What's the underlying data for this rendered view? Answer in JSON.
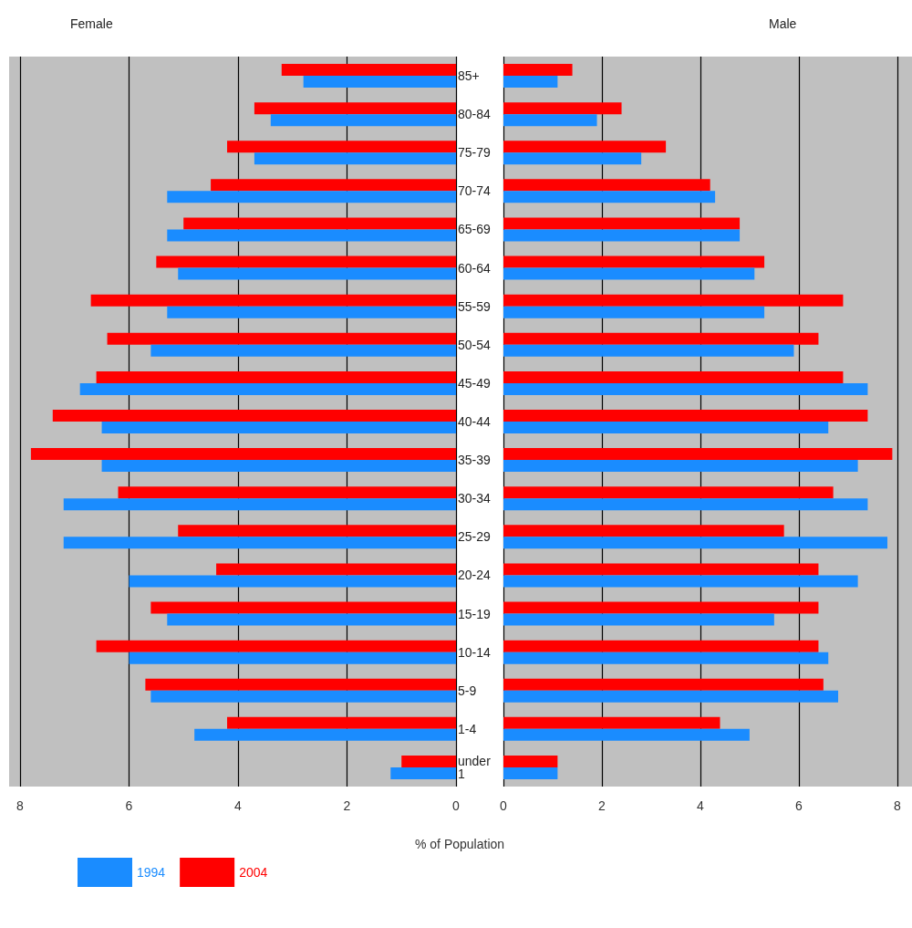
{
  "chart_data": [
    {
      "type": "bar",
      "orientation": "horizontal",
      "title": "Female",
      "xlabel": "% of Population",
      "categories": [
        "85+",
        "80-84",
        "75-79",
        "70-74",
        "65-69",
        "60-64",
        "55-59",
        "50-54",
        "45-49",
        "40-44",
        "35-39",
        "30-34",
        "25-29",
        "20-24",
        "15-19",
        "10-14",
        "5-9",
        "1-4",
        "under 1"
      ],
      "series": [
        {
          "name": "1994",
          "color": "#1a8cff",
          "values": [
            2.8,
            3.4,
            3.7,
            5.3,
            5.3,
            5.1,
            5.3,
            5.6,
            6.9,
            6.5,
            6.5,
            7.2,
            7.2,
            6.0,
            5.3,
            6.0,
            5.6,
            4.8,
            1.2
          ]
        },
        {
          "name": "2004",
          "color": "#ff0000",
          "values": [
            3.2,
            3.7,
            4.2,
            4.5,
            5.0,
            5.5,
            6.7,
            6.4,
            6.6,
            7.4,
            7.8,
            6.2,
            5.1,
            4.4,
            5.6,
            6.6,
            5.7,
            4.2,
            1.0
          ]
        }
      ],
      "xlim": [
        8.2,
        0
      ],
      "xticks": [
        8,
        6,
        4,
        2,
        0
      ],
      "grid": "x",
      "legend": "bottom left"
    },
    {
      "type": "bar",
      "orientation": "horizontal",
      "title": "Male",
      "categories": [
        "85+",
        "80-84",
        "75-79",
        "70-74",
        "65-69",
        "60-64",
        "55-59",
        "50-54",
        "45-49",
        "40-44",
        "35-39",
        "30-34",
        "25-29",
        "20-24",
        "15-19",
        "10-14",
        "5-9",
        "1-4",
        "under 1"
      ],
      "series": [
        {
          "name": "1994",
          "color": "#1a8cff",
          "values": [
            1.1,
            1.9,
            2.8,
            4.3,
            4.8,
            5.1,
            5.3,
            5.9,
            7.4,
            6.6,
            7.2,
            7.4,
            7.8,
            7.2,
            5.5,
            6.6,
            6.8,
            5.0,
            1.1
          ]
        },
        {
          "name": "2004",
          "color": "#ff0000",
          "values": [
            1.4,
            2.4,
            3.3,
            4.2,
            4.8,
            5.3,
            6.9,
            6.4,
            6.9,
            7.4,
            7.9,
            6.7,
            5.7,
            6.4,
            6.4,
            6.4,
            6.5,
            4.4,
            1.1
          ]
        }
      ],
      "xlim": [
        0,
        8.3
      ],
      "xticks": [
        0,
        2,
        4,
        6,
        8
      ],
      "grid": "x",
      "tick_labels": "x"
    }
  ]
}
